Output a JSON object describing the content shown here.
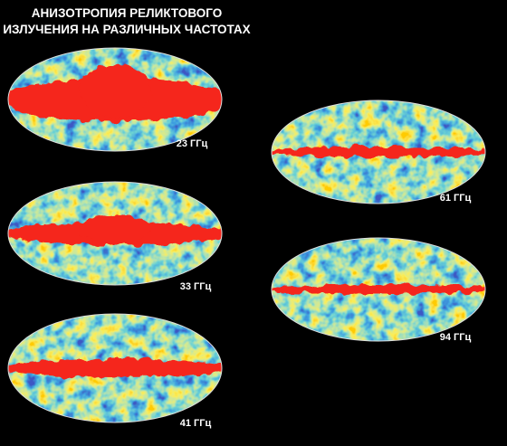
{
  "header": {
    "title_lines": [
      "АНИЗОТРОПИЯ РЕЛИКТОВОГО",
      "ИЗЛУЧЕНИЯ НА РАЗЛИЧНЫХ ЧАСТОТАХ"
    ]
  },
  "maps": [
    {
      "label": "23 ГГц"
    },
    {
      "label": "33 ГГц"
    },
    {
      "label": "41 ГГц"
    },
    {
      "label": "61 ГГц"
    },
    {
      "label": "94 ГГц"
    }
  ]
}
